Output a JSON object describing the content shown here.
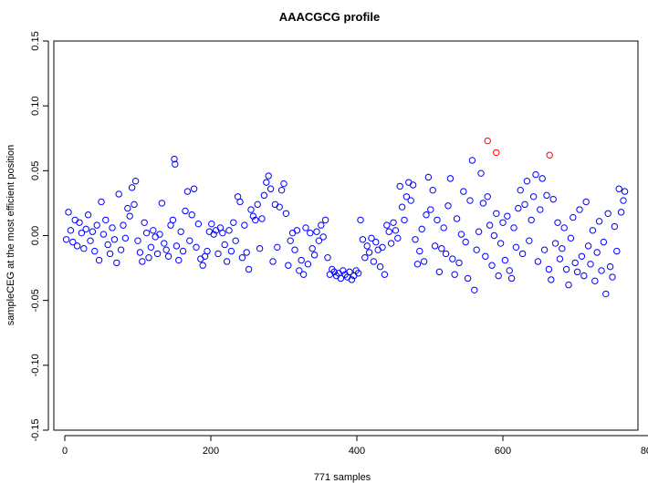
{
  "chart_data": {
    "type": "scatter",
    "title": "AAACGCG profile",
    "xlabel": "771 samples",
    "ylabel": "sampleCEG at the most efficient position",
    "xlim": [
      -15,
      785
    ],
    "ylim": [
      -0.15,
      0.15
    ],
    "xticks": [
      0,
      200,
      400,
      600,
      800
    ],
    "xtick_labels": [
      "0",
      "200",
      "400",
      "600",
      "800"
    ],
    "yticks": [
      -0.15,
      -0.1,
      -0.05,
      0.0,
      0.05,
      0.1,
      0.15
    ],
    "ytick_labels": [
      "-0.15",
      "-0.10",
      "-0.05",
      "0.00",
      "0.05",
      "0.10",
      "0.15"
    ],
    "grid": false,
    "marker": "open-circle",
    "colors": {
      "normal": "#0000ff",
      "highlight": "#ff0000"
    },
    "series": [
      {
        "color": "#0000ff",
        "points": [
          [
            2,
            -0.003
          ],
          [
            5,
            0.018
          ],
          [
            8,
            0.004
          ],
          [
            11,
            -0.005
          ],
          [
            14,
            0.012
          ],
          [
            17,
            -0.008
          ],
          [
            20,
            0.01
          ],
          [
            23,
            0.002
          ],
          [
            26,
            -0.01
          ],
          [
            29,
            0.005
          ],
          [
            32,
            0.016
          ],
          [
            35,
            -0.004
          ],
          [
            38,
            0.003
          ],
          [
            41,
            -0.012
          ],
          [
            44,
            0.008
          ],
          [
            47,
            -0.019
          ],
          [
            50,
            0.026
          ],
          [
            53,
            0.001
          ],
          [
            56,
            0.012
          ],
          [
            59,
            -0.007
          ],
          [
            62,
            -0.014
          ],
          [
            65,
            0.006
          ],
          [
            68,
            -0.003
          ],
          [
            71,
            -0.021
          ],
          [
            74,
            0.032
          ],
          [
            77,
            -0.011
          ],
          [
            80,
            0.008
          ],
          [
            83,
            -0.002
          ],
          [
            86,
            0.021
          ],
          [
            89,
            0.015
          ],
          [
            92,
            0.037
          ],
          [
            95,
            0.024
          ],
          [
            97,
            0.042
          ],
          [
            100,
            -0.004
          ],
          [
            103,
            -0.013
          ],
          [
            106,
            -0.02
          ],
          [
            109,
            0.01
          ],
          [
            112,
            0.002
          ],
          [
            115,
            -0.017
          ],
          [
            118,
            -0.009
          ],
          [
            121,
            0.004
          ],
          [
            124,
            -0.001
          ],
          [
            127,
            -0.014
          ],
          [
            130,
            0.001
          ],
          [
            133,
            0.025
          ],
          [
            136,
            -0.006
          ],
          [
            139,
            -0.011
          ],
          [
            142,
            -0.016
          ],
          [
            145,
            0.008
          ],
          [
            148,
            0.012
          ],
          [
            150,
            0.059
          ],
          [
            151,
            0.055
          ],
          [
            153,
            -0.008
          ],
          [
            156,
            -0.019
          ],
          [
            159,
            0.003
          ],
          [
            162,
            -0.012
          ],
          [
            165,
            0.019
          ],
          [
            168,
            0.034
          ],
          [
            171,
            -0.004
          ],
          [
            174,
            0.016
          ],
          [
            177,
            0.036
          ],
          [
            180,
            -0.009
          ],
          [
            183,
            0.009
          ],
          [
            186,
            -0.018
          ],
          [
            189,
            -0.023
          ],
          [
            192,
            -0.016
          ],
          [
            195,
            -0.012
          ],
          [
            198,
            0.003
          ],
          [
            201,
            0.009
          ],
          [
            204,
            0.001
          ],
          [
            207,
            0.004
          ],
          [
            210,
            -0.014
          ],
          [
            213,
            0.006
          ],
          [
            216,
            0.002
          ],
          [
            219,
            -0.007
          ],
          [
            222,
            -0.02
          ],
          [
            225,
            0.004
          ],
          [
            228,
            -0.012
          ],
          [
            231,
            0.01
          ],
          [
            234,
            -0.004
          ],
          [
            237,
            0.03
          ],
          [
            240,
            0.026
          ],
          [
            243,
            -0.017
          ],
          [
            246,
            0.008
          ],
          [
            249,
            -0.013
          ],
          [
            252,
            -0.026
          ],
          [
            255,
            0.02
          ],
          [
            258,
            0.015
          ],
          [
            261,
            0.012
          ],
          [
            264,
            0.024
          ],
          [
            267,
            -0.01
          ],
          [
            270,
            0.013
          ],
          [
            273,
            0.031
          ],
          [
            276,
            0.041
          ],
          [
            279,
            0.046
          ],
          [
            282,
            0.036
          ],
          [
            285,
            -0.02
          ],
          [
            288,
            0.024
          ],
          [
            291,
            -0.009
          ],
          [
            294,
            0.022
          ],
          [
            297,
            0.035
          ],
          [
            300,
            0.04
          ],
          [
            303,
            0.017
          ],
          [
            306,
            -0.023
          ],
          [
            309,
            -0.004
          ],
          [
            312,
            0.002
          ],
          [
            315,
            -0.011
          ],
          [
            318,
            0.004
          ],
          [
            321,
            -0.027
          ],
          [
            324,
            -0.019
          ],
          [
            327,
            -0.03
          ],
          [
            330,
            0.006
          ],
          [
            333,
            -0.022
          ],
          [
            336,
            0.002
          ],
          [
            339,
            -0.01
          ],
          [
            342,
            -0.015
          ],
          [
            345,
            0.003
          ],
          [
            348,
            -0.004
          ],
          [
            351,
            0.008
          ],
          [
            354,
            -0.001
          ],
          [
            357,
            0.012
          ],
          [
            360,
            -0.017
          ],
          [
            363,
            -0.03
          ],
          [
            366,
            -0.026
          ],
          [
            369,
            -0.028
          ],
          [
            372,
            -0.031
          ],
          [
            375,
            -0.029
          ],
          [
            378,
            -0.033
          ],
          [
            381,
            -0.027
          ],
          [
            384,
            -0.03
          ],
          [
            387,
            -0.032
          ],
          [
            390,
            -0.028
          ],
          [
            393,
            -0.034
          ],
          [
            396,
            -0.031
          ],
          [
            399,
            -0.027
          ],
          [
            402,
            -0.029
          ],
          [
            405,
            0.012
          ],
          [
            408,
            -0.003
          ],
          [
            411,
            -0.017
          ],
          [
            414,
            -0.008
          ],
          [
            417,
            -0.013
          ],
          [
            420,
            -0.002
          ],
          [
            423,
            -0.02
          ],
          [
            426,
            -0.005
          ],
          [
            429,
            -0.011
          ],
          [
            432,
            -0.024
          ],
          [
            435,
            -0.009
          ],
          [
            438,
            -0.03
          ],
          [
            441,
            0.008
          ],
          [
            444,
            0.003
          ],
          [
            447,
            -0.006
          ],
          [
            450,
            0.01
          ],
          [
            453,
            0.004
          ],
          [
            456,
            -0.002
          ],
          [
            459,
            0.038
          ],
          [
            462,
            0.022
          ],
          [
            465,
            0.012
          ],
          [
            468,
            0.03
          ],
          [
            471,
            0.041
          ],
          [
            474,
            0.027
          ],
          [
            477,
            0.039
          ],
          [
            480,
            -0.003
          ],
          [
            483,
            -0.022
          ],
          [
            486,
            -0.012
          ],
          [
            489,
            0.005
          ],
          [
            492,
            -0.02
          ],
          [
            495,
            0.016
          ],
          [
            498,
            0.045
          ],
          [
            501,
            0.02
          ],
          [
            504,
            0.035
          ],
          [
            507,
            -0.008
          ],
          [
            510,
            0.012
          ],
          [
            513,
            -0.028
          ],
          [
            516,
            -0.01
          ],
          [
            519,
            0.006
          ],
          [
            522,
            -0.014
          ],
          [
            525,
            0.023
          ],
          [
            528,
            0.044
          ],
          [
            531,
            -0.018
          ],
          [
            534,
            -0.03
          ],
          [
            537,
            0.013
          ],
          [
            540,
            -0.021
          ],
          [
            543,
            0.001
          ],
          [
            546,
            0.034
          ],
          [
            549,
            -0.005
          ],
          [
            552,
            -0.033
          ],
          [
            555,
            0.027
          ],
          [
            558,
            0.058
          ],
          [
            561,
            -0.042
          ],
          [
            564,
            -0.011
          ],
          [
            567,
            0.003
          ],
          [
            570,
            0.048
          ],
          [
            573,
            0.025
          ],
          [
            576,
            -0.016
          ],
          [
            579,
            0.03
          ],
          [
            582,
            0.008
          ],
          [
            585,
            -0.023
          ],
          [
            588,
            0.0
          ],
          [
            591,
            0.017
          ],
          [
            594,
            -0.031
          ],
          [
            597,
            -0.006
          ],
          [
            600,
            0.01
          ],
          [
            603,
            -0.019
          ],
          [
            606,
            0.015
          ],
          [
            609,
            -0.027
          ],
          [
            612,
            -0.033
          ],
          [
            615,
            0.006
          ],
          [
            618,
            -0.009
          ],
          [
            621,
            0.021
          ],
          [
            624,
            0.035
          ],
          [
            627,
            -0.014
          ],
          [
            630,
            0.024
          ],
          [
            633,
            0.042
          ],
          [
            636,
            -0.004
          ],
          [
            639,
            0.012
          ],
          [
            642,
            0.03
          ],
          [
            645,
            0.047
          ],
          [
            648,
            -0.02
          ],
          [
            651,
            0.02
          ],
          [
            654,
            0.044
          ],
          [
            657,
            -0.011
          ],
          [
            660,
            0.031
          ],
          [
            663,
            -0.026
          ],
          [
            666,
            -0.034
          ],
          [
            669,
            0.028
          ],
          [
            672,
            -0.006
          ],
          [
            675,
            0.01
          ],
          [
            678,
            -0.018
          ],
          [
            681,
            -0.01
          ],
          [
            684,
            0.006
          ],
          [
            687,
            -0.026
          ],
          [
            690,
            -0.038
          ],
          [
            693,
            -0.002
          ],
          [
            696,
            0.014
          ],
          [
            699,
            -0.021
          ],
          [
            702,
            -0.028
          ],
          [
            705,
            0.02
          ],
          [
            708,
            -0.016
          ],
          [
            711,
            -0.031
          ],
          [
            714,
            0.026
          ],
          [
            717,
            -0.008
          ],
          [
            720,
            -0.022
          ],
          [
            723,
            0.004
          ],
          [
            726,
            -0.035
          ],
          [
            729,
            -0.013
          ],
          [
            732,
            0.011
          ],
          [
            735,
            -0.027
          ],
          [
            738,
            -0.005
          ],
          [
            741,
            -0.045
          ],
          [
            744,
            0.017
          ],
          [
            747,
            -0.024
          ],
          [
            750,
            -0.032
          ],
          [
            753,
            0.007
          ],
          [
            756,
            -0.012
          ],
          [
            759,
            0.036
          ],
          [
            762,
            0.018
          ],
          [
            765,
            0.027
          ],
          [
            767,
            0.034
          ]
        ]
      },
      {
        "color": "#ff0000",
        "points": [
          [
            579,
            0.073
          ],
          [
            591,
            0.064
          ],
          [
            664,
            0.062
          ]
        ]
      }
    ]
  }
}
